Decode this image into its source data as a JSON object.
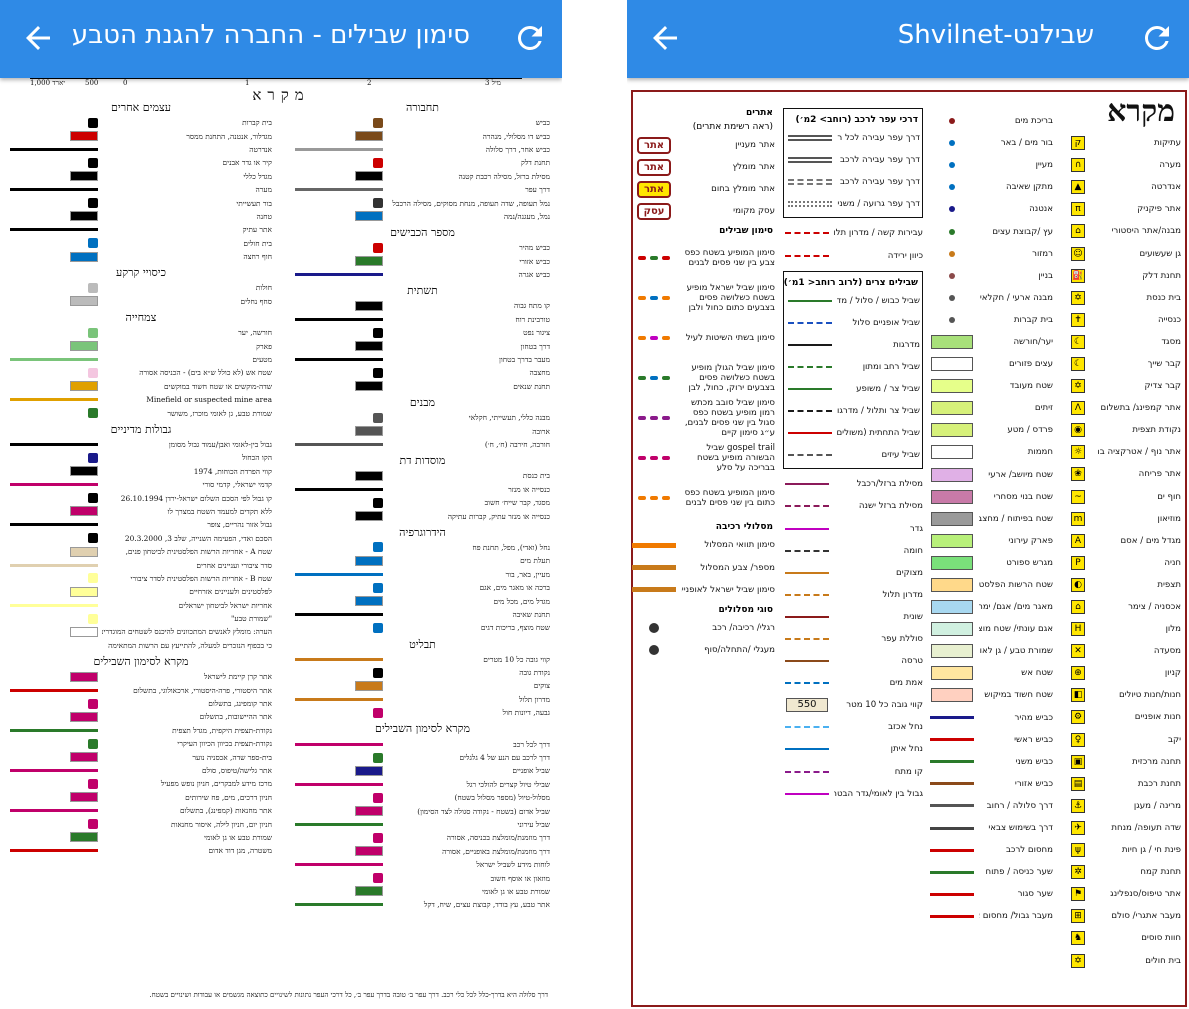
{
  "left": {
    "title": "סימון שבילים - החברה להגנת הטבע",
    "scale": {
      "labels": [
        "1,000 יארד",
        "500",
        "0",
        "1",
        "2",
        "3 מיל"
      ]
    },
    "legend_title": "מקרא",
    "col_a": [
      {
        "h": "תחבורה"
      },
      {
        "t": "כביש",
        "c": "#7a4a1a"
      },
      {
        "t": "כביש דו מסלולי, מנהרה",
        "c": "#7a4a1a"
      },
      {
        "t": "כביש אחר, דרך סלולה",
        "c": "#999"
      },
      {
        "t": "תחנת דלק",
        "c": "#c00"
      },
      {
        "t": "מסילת ברזל, מסילה רכבת קטנה",
        "c": "#000"
      },
      {
        "t": "דרך עפר",
        "c": "#666"
      },
      {
        "t": "נמל תעופה, שדה תעופה, מנחת מסוקים, מסילה הרכבל",
        "c": "#333"
      },
      {
        "t": "נמל, מעגנה/נמה",
        "c": "#0070c0"
      },
      {
        "h": "מספר הכבישים"
      },
      {
        "t": "כביש מהיר",
        "c": "#c00"
      },
      {
        "t": "כביש אזורי",
        "c": "#2a7a2a"
      },
      {
        "t": "כביש אגרה",
        "c": "#1a1a8a"
      },
      {
        "h": "תשתית"
      },
      {
        "t": "קו מתח גבוה",
        "c": "#000"
      },
      {
        "t": "טורבינת רוח",
        "c": "#000"
      },
      {
        "t": "ציגור נפט",
        "c": "#000"
      },
      {
        "t": "דרך בטחון",
        "c": "#000"
      },
      {
        "t": "מעבר בדרך בטחון",
        "c": "#000"
      },
      {
        "t": "מחצבה",
        "c": "#000"
      },
      {
        "t": "תחנת שנאים",
        "c": "#000"
      },
      {
        "h": "מבנים"
      },
      {
        "t": "מבנה כללי, תעשייתי, חקלאי",
        "c": "#555"
      },
      {
        "t": "ארובה",
        "c": "#555"
      },
      {
        "t": "חורבה, חירבה (ח׳, ח׳)",
        "c": "#555"
      },
      {
        "h": "מוסדות דת"
      },
      {
        "t": "בית כנסת",
        "c": "#000"
      },
      {
        "t": "כנסייה או מנזר",
        "c": "#000"
      },
      {
        "t": "מסגד, קבר שייח׳ חשוב",
        "c": "#000"
      },
      {
        "t": "כנסייה או מנזר עתיק, קברות עתיקה",
        "c": "#000"
      },
      {
        "h": "הידרוגרפיה"
      },
      {
        "t": "נחל (ואדי), מפל, תחנת פח",
        "c": "#0070c0"
      },
      {
        "t": "תעלת מים",
        "c": "#0070c0"
      },
      {
        "t": "מעיין, באר, בור",
        "c": "#0070c0"
      },
      {
        "t": "ברכה או מאגר מים, אגם",
        "c": "#0070c0"
      },
      {
        "t": "מגדל מים, מכל מים",
        "c": "#0070c0"
      },
      {
        "t": "תחנת שאיבה",
        "c": "#000"
      },
      {
        "t": "שטח מוצף, בריכות דגים",
        "c": "#0070c0"
      },
      {
        "h": "תבליט"
      },
      {
        "t": "קווי גובה כל 10 מטרים",
        "c": "#c87a1a"
      },
      {
        "t": "נקודת גובה",
        "c": "#000"
      },
      {
        "t": "צוקים",
        "c": "#c87a1a"
      },
      {
        "t": "מדרון תלול",
        "c": "#c87a1a"
      },
      {
        "t": "גבעה, דיונות חול",
        "c": "#c0006a"
      },
      {
        "h": "מקרא לסימון השבילים"
      },
      {
        "t": "דרך לכל רכב",
        "c": "#c0006a"
      },
      {
        "t": "דרך לרכב עם הנע של 4 גלגלים",
        "c": "#2a7a2a"
      },
      {
        "t": "שביל אופניים",
        "c": "#1a1a8a"
      },
      {
        "t": "שבילי טיול קצרים להולכי רגל",
        "c": "#c0006a"
      },
      {
        "t": "מסלול-טיול (מספר מסלול בשטח)",
        "c": "#c0006a"
      },
      {
        "t": "שביל אדום (בשטח - נקודה סגולה לצד הסימון)",
        "c": "#c0006a"
      },
      {
        "t": "שביל עירוני",
        "c": "#2a7a2a"
      },
      {
        "t": "דרך מוזמנת/מומלצת בכניסה, אסורה",
        "c": "#c0006a"
      },
      {
        "t": "דרך מוזמנת/מומלצת באופניים, אסורה",
        "c": "#c0006a"
      },
      {
        "t": "לוחות מידע לשביל ישראל",
        "c": "#c0006a"
      },
      {
        "t": "מוזאון או אוסף חשוב",
        "c": "#c0006a"
      },
      {
        "t": "שמורת טבע או גן לאומי",
        "c": "#2a7a2a"
      },
      {
        "t": "אתר טבע, עץ בודד, קבוצת עצים, שיח, דקל",
        "c": "#2a7a2a"
      }
    ],
    "col_b": [
      {
        "h": "עצמים אחרים"
      },
      {
        "t": "בית קברות",
        "c": "#000"
      },
      {
        "t": "מגדלור, אנטנה, התחנת ממסר",
        "c": "#c00"
      },
      {
        "t": "אנדרטה",
        "c": "#000"
      },
      {
        "t": "קיר או גדר אבנים",
        "c": "#000"
      },
      {
        "t": "מגדל כללי",
        "c": "#000"
      },
      {
        "t": "מערה",
        "c": "#000"
      },
      {
        "t": "בור תעשייתי",
        "c": "#000"
      },
      {
        "t": "טחנה",
        "c": "#000"
      },
      {
        "t": "אתר עתיק",
        "c": "#000"
      },
      {
        "t": "בית חולים",
        "c": "#0070c0"
      },
      {
        "t": "חוף רחצה",
        "c": "#0070c0"
      },
      {
        "h": "כיסויי קרקע"
      },
      {
        "t": "חולות",
        "c": "#bbb"
      },
      {
        "t": "סחף נחלים",
        "c": "#bbb"
      },
      {
        "h": "צמחייה"
      },
      {
        "t": "חורשה, יער",
        "c": "#7ac47a"
      },
      {
        "t": "פארק",
        "c": "#7ac47a"
      },
      {
        "t": "מטעים",
        "c": "#7ac47a"
      },
      {
        "t": "שטח אש (לא כולל ש״א בים) - הכניסה אסורה",
        "c": "#f4c6e0"
      },
      {
        "t": "שדה-מוקשים או שטח חשוד במוקשים",
        "c": "#e0a000"
      },
      {
        "t": "Minefield or suspected mine area",
        "c": "#e0a000"
      },
      {
        "t": "שמורת טבע, גן לאומי מוכרז, משושר",
        "c": "#2a7a2a"
      },
      {
        "h": "גבולות מדיניים"
      },
      {
        "t": "גבול בין-לאומי ואבן/עמוד גבול מסומן",
        "c": "#000"
      },
      {
        "t": "הקו הכחול",
        "c": "#1a1a8a"
      },
      {
        "t": "קווי הפרדת הכוחות, 1974",
        "c": "#000"
      },
      {
        "t": "קדמי ישראלי, קדמי סורי",
        "c": "#c0006a"
      },
      {
        "t": "קו גבול לפי הסכם השלום ישראל-ירדן 26.10.1994",
        "c": "#000"
      },
      {
        "t": "ללא תקדים למעמד השטח במצרך לו",
        "c": "#c0006a"
      },
      {
        "t": "גבול אזור נהריים, צופר",
        "c": "#000"
      },
      {
        "t": "הסכם ואדי, הפעימה השנייה, שלב 3, 20.3.2000",
        "c": "#000"
      },
      {
        "t": "שטח A - אחריות הרשות הפלסטינית לביטחון פנים,",
        "c": "#e0d0b0"
      },
      {
        "t": "סדר ציבורי ועניינים אחרים",
        "c": "#e0d0b0"
      },
      {
        "t": "שטח B - אחריות הרשות הפלסטינית לסדר ציבורי",
        "c": "#ffff99"
      },
      {
        "t": "לפלסטינים ולעניינים אזרחיים",
        "c": "#ffff99"
      },
      {
        "t": "אחריות ישראל לביטחון ישראלים",
        "c": "#ffff99"
      },
      {
        "t": "\"שמורת טבע\"",
        "c": "#ffff99"
      },
      {
        "t": "הערה: מומלץ לאנשים המתכוונים להיכנס לשטחים המוגדרים",
        "c": "#fff"
      },
      {
        "t": "כי בכפוף הנזכרים למעלה, להתייעץ עם הרשות המתאימה",
        "c": "#fff"
      },
      {
        "h": "מקרא לסימון השבילים"
      },
      {
        "t": "אתר קרן קיימת לישראל",
        "c": "#c0006a"
      },
      {
        "t": "אתר היסטורי, פרה-היסטורי, ארכאולוגי, בתשלום",
        "c": "#c00"
      },
      {
        "t": "אתר קומפינג, בתשלום",
        "c": "#c0006a"
      },
      {
        "t": "אתר ההיישובות, בתשלום",
        "c": "#c0006a"
      },
      {
        "t": "נקודת-תצפית היקפית, מגדל תצפית",
        "c": "#2a7a2a"
      },
      {
        "t": "נקודת-תצפית בכיוון הכיוון העיקרי",
        "c": "#2a7a2a"
      },
      {
        "t": "בית-ספר שדה, אכסניה נוער",
        "c": "#c0006a"
      },
      {
        "t": "אתר גלישה/טיפוס, סולם",
        "c": "#c0006a"
      },
      {
        "t": "מרכז מידע למבקרים, חניון נופש מפעיל",
        "c": "#c0006a"
      },
      {
        "t": "חניון דרכים, מים, פח שירותים",
        "c": "#c0006a"
      },
      {
        "t": "אתר מחנאות (קמפינג), בתשלום",
        "c": "#c0006a"
      },
      {
        "t": "חניון יום, חניון לילה, איסור מחנאות",
        "c": "#c0006a"
      },
      {
        "t": "שמורת טבע או גן לאומי",
        "c": "#2a7a2a"
      },
      {
        "t": "משטרה, מגן דוד אדום",
        "c": "#c00"
      }
    ],
    "footnote": "דרך סלולה היא בדרך-כלל לכל כלי רכב. דרך עפר ב׳ טובה בדרך עפר ב׳, כל דרכי העפר נתונות לשינויים כתוצאה מגשמים או עבודות ושינויים בשטח."
  },
  "right": {
    "title": "שבילנט-Shvilnet",
    "legend_title": "מקרא",
    "col1": [
      {
        "t": "עתיקות",
        "i": "ק"
      },
      {
        "t": "מערה",
        "i": "∩"
      },
      {
        "t": "אנדרטה",
        "i": "▲"
      },
      {
        "t": "אתר פיקניק",
        "i": "π"
      },
      {
        "t": "מבנה/אתר היסטורי",
        "i": "⌂"
      },
      {
        "t": "גן שעשועים",
        "i": "☺"
      },
      {
        "t": "תחנת דלק",
        "i": "⛽"
      },
      {
        "t": "בית כנסת",
        "i": "✡"
      },
      {
        "t": "כנסייה",
        "i": "✝"
      },
      {
        "t": "מסגד",
        "i": "☾"
      },
      {
        "t": "קבר שייך",
        "i": "☾"
      },
      {
        "t": "קבר צדיק",
        "i": "✡"
      },
      {
        "t": "אתר קמפינג/ בתשלום",
        "i": "Λ"
      },
      {
        "t": "נקודת תצפית",
        "i": "◉"
      },
      {
        "t": "אתר נוף / אטרקציה בתשלום",
        "i": "☼"
      },
      {
        "t": "אתר פריחה",
        "i": "❀"
      },
      {
        "t": "חוף ים",
        "i": "~"
      },
      {
        "t": "מוזיאון",
        "i": "m"
      },
      {
        "t": "מגדל מים / אסם",
        "i": "A"
      },
      {
        "t": "חניה",
        "i": "P"
      },
      {
        "t": "תצפית",
        "i": "◐"
      },
      {
        "t": "אכסניה / צימר",
        "i": "⌂"
      },
      {
        "t": "מלון",
        "i": "H"
      },
      {
        "t": "מסעדה",
        "i": "✕"
      },
      {
        "t": "קניון",
        "i": "⊕"
      },
      {
        "t": "חנות/חנות טיולים",
        "i": "◧"
      },
      {
        "t": "חנות אופניים",
        "i": "⚙"
      },
      {
        "t": "יקב",
        "i": "♀"
      },
      {
        "t": "תחנה מרכזית",
        "i": "▣"
      },
      {
        "t": "תחנת רכבת",
        "i": "▤"
      },
      {
        "t": "מרינה / מעגן",
        "i": "⚓"
      },
      {
        "t": "שדה תעופה/ מנחת",
        "i": "✈"
      },
      {
        "t": "פינת חי / גן חיות",
        "i": "ψ"
      },
      {
        "t": "תחנת קמח",
        "i": "✲"
      },
      {
        "t": "אתר טיפוס/סנפלינג",
        "i": "⚑"
      },
      {
        "t": "מעבר אתגרי/ סולם",
        "i": "⊞"
      },
      {
        "t": "חוות סוסים",
        "i": "♞"
      },
      {
        "t": "בית חולים",
        "i": "✡"
      }
    ],
    "col2": [
      {
        "t": "בריכת מים",
        "d": "#8b1a1a"
      },
      {
        "t": "בור מים / באר",
        "d": "#0070c0"
      },
      {
        "t": "מעיין",
        "d": "#0070c0"
      },
      {
        "t": "מתקן שאיבה",
        "d": "#0070c0"
      },
      {
        "t": "אנטנה",
        "d": "#1a1a8a"
      },
      {
        "t": "עץ /קבוצת עצים",
        "d": "#2a7a2a"
      },
      {
        "t": "רמזור",
        "d": "#c87a1a"
      },
      {
        "t": "בניין",
        "d": "#8b4a4a"
      },
      {
        "t": "מבנה ארעי / חקלאי / תעשייתי",
        "d": "#555"
      },
      {
        "t": "בית קברות",
        "d": "#555"
      },
      {
        "t": "יער/חורשה",
        "b": "#a8e07a"
      },
      {
        "t": "עצים פזורים",
        "b": "#ffffff"
      },
      {
        "t": "שטח מעובד",
        "b": "#e6ff8a"
      },
      {
        "t": "זיתים",
        "b": "#d6f07a"
      },
      {
        "t": "פרדס / מטע",
        "b": "#d6f07a"
      },
      {
        "t": "חממות",
        "b": "#ffffff"
      },
      {
        "t": "שטח מיושב/ ארעי",
        "b": "#e0b0e6"
      },
      {
        "t": "שטח בנוי מסחרי",
        "b": "#c87aa8"
      },
      {
        "t": "שטח בפיתוח / מחצבה",
        "b": "#9a9a9a"
      },
      {
        "t": "פארק עירוני",
        "b": "#b8f07a"
      },
      {
        "t": "מגרש ספורט",
        "b": "#7ae07a"
      },
      {
        "t": "שטח הרשות הפלסטינית",
        "b": "#ffd98a"
      },
      {
        "t": "מאגר מים/ אגם/ ימה",
        "b": "#a8d8f0"
      },
      {
        "t": "אגם עונתי/ שטח מוצף לפרקים",
        "b": "#d0f0e0"
      },
      {
        "t": "שמורת טבע / גן לאומי",
        "b": "#e8f0d0"
      },
      {
        "t": "שטח אש",
        "b": "#ffe6a0"
      },
      {
        "t": "שטח חשוד במיקוש",
        "b": "#ffd0c0"
      },
      {
        "t": "כביש מהיר",
        "l": "#1a1a8a"
      },
      {
        "t": "כביש ראשי",
        "l": "#c00"
      },
      {
        "t": "כביש משני",
        "l": "#2a7a2a"
      },
      {
        "t": "כביש אזורי",
        "l": "#8b4a1a"
      },
      {
        "t": "דרך סלולה / רחוב",
        "l": "#555"
      },
      {
        "t": "דרך בשימוש צבאי",
        "l": "#444"
      },
      {
        "t": "מחסום לרכב",
        "l": "#c00"
      },
      {
        "t": "שער כניסה / פתוח",
        "l": "#2a7a2a"
      },
      {
        "t": "שער סגור",
        "l": "#c00"
      },
      {
        "t": "מעבר גבול/ מחסום צהל",
        "l": "#c00"
      }
    ],
    "col3": {
      "dirt_header": "דרכי עפר לרכב (רוחב> 2מ׳)",
      "dirt": [
        {
          "t": "דרך עפר עבירה לכל רכב"
        },
        {
          "t": "דרך עפר עבירה לרכב גבוה"
        },
        {
          "t": "דרך עפר עבירה לרכב 4*4"
        },
        {
          "t": "דרך עפר גרועה / משנית"
        }
      ],
      "extra": [
        {
          "t": "עבירות קשה / מדרון תלול",
          "c": "#c00"
        },
        {
          "t": "כיוון ירידה",
          "c": "#c00"
        }
      ],
      "narrow_header": "שבילים צרים (לרוב רוחב< 1מ׳)",
      "narrow": [
        {
          "t": "שביל כבוש / סלול / מדרכה רחבה",
          "c": "#2a7a2a"
        },
        {
          "t": "שביל אופניים סלול",
          "c": "#1a50c0"
        },
        {
          "t": "מדרגות",
          "c": "#1a1a1a"
        },
        {
          "t": "שביל רחב ומתון",
          "c": "#2a7a2a"
        },
        {
          "t": "שביל צר / משופע",
          "c": "#2a7a2a"
        },
        {
          "t": "שביל צר ותלול / מדרגות סלע",
          "c": "#1a1a1a"
        },
        {
          "t": "שביל התחתית (משולים רבים כגון סלעים/ צמחיה צפופה)",
          "c": "#c00"
        },
        {
          "t": "שביל עיזים",
          "c": "#555"
        }
      ],
      "rest": [
        {
          "t": "מסילת ברזל/רכבל",
          "c": "#8b1a5a"
        },
        {
          "t": "מסילת ברזל ישנה",
          "c": "#8b1a5a"
        },
        {
          "t": "גדר",
          "c": "#c000c0"
        },
        {
          "t": "חומה",
          "c": "#333"
        },
        {
          "t": "מצוקים",
          "c": "#c87a1a"
        },
        {
          "t": "מדרון תלול",
          "c": "#c87a1a"
        },
        {
          "t": "שונית",
          "c": "#8b1a1a"
        },
        {
          "t": "סוללת עפר",
          "c": "#c87a1a"
        },
        {
          "t": "טרסה",
          "c": "#8b4a1a"
        },
        {
          "t": "אמת מים",
          "c": "#0070c0"
        },
        {
          "t": "קווי גובה כל 10 מטר",
          "c": "#8b4a1a",
          "v": "550"
        },
        {
          "t": "נחל אכזב",
          "c": "#4ab0f0"
        },
        {
          "t": "נחל איתן",
          "c": "#0070c0"
        },
        {
          "t": "קו מתח",
          "c": "#8b1a8b"
        },
        {
          "t": "גבול בין לאומי/גדר הבטחון",
          "c": "#c000c0"
        }
      ]
    },
    "col4": {
      "sites_header": "אתרים",
      "sites_sub": "(ראה רשימת אתרים)",
      "sites": [
        {
          "t": "אתר מעניין",
          "tag": "אתר",
          "y": false
        },
        {
          "t": "אתר מומלץ",
          "tag": "אתר",
          "y": false
        },
        {
          "t": "אתר מומלץ בחום",
          "tag": "אתר",
          "y": true
        },
        {
          "t": "עסק מקומי",
          "tag": "עסק",
          "y": false
        }
      ],
      "trails_header": "סימון שבילים",
      "trails": [
        {
          "t": "סימון המופיע בשטח כפס צבע בין שני פסים לבנים"
        },
        {
          "t": "סימון שביל ישראל מופיע בשטח כשלושה פסים בצבעים כתום כחול ולבן"
        },
        {
          "t": "סימון בשתי השיטות לעיל"
        },
        {
          "t": "סימון שביל הגולן מופיע בשטח כשלושה פסים בצבעים ירוק, כחול, לבן"
        },
        {
          "t": "סימון שביל סובב מכתש רמון מופיע בשטח כפס סגול בין שני פסים לבנים, ע״ג סימון קיים"
        },
        {
          "t": "gospel trail שביל הבשורה מופיע בשטח בבריכה על סלע"
        },
        {
          "t": "סימון המופיע בשטח כפס כתום בין שני פסים לבנים"
        }
      ],
      "routes_header": "מסלולי רכיבה",
      "routes": [
        {
          "t": "סימון תוואי המסלול"
        },
        {
          "t": "מספר/ צבע המסלול"
        },
        {
          "t": "סימון שביל ישראל לאופניים"
        }
      ],
      "types_header": "סוגי מסלולים",
      "types": [
        {
          "t": "רגלי/ רכיבה/ רכב"
        },
        {
          "t": "מעגלי /התחלה/סוף"
        }
      ]
    }
  },
  "colors": {
    "appbar": "#2f8ae6",
    "frame": "#8b1a1a"
  }
}
